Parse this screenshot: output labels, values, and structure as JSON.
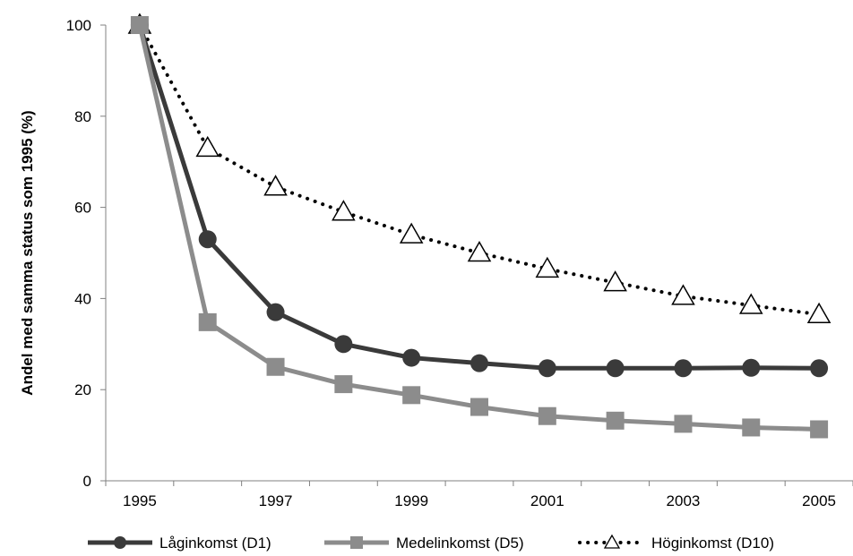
{
  "chart_data": {
    "type": "line",
    "title": "",
    "xlabel": "",
    "ylabel": "Andel med samma status som 1995 (%)",
    "x": [
      1995,
      1996,
      1997,
      1998,
      1999,
      2000,
      2001,
      2002,
      2003,
      2004,
      2005
    ],
    "x_tick_labels": [
      "1995",
      "1997",
      "1999",
      "2001",
      "2003",
      "2005"
    ],
    "y_tick_labels": [
      "0",
      "20",
      "40",
      "60",
      "80",
      "100"
    ],
    "ylim": [
      0,
      100
    ],
    "grid": false,
    "legend_position": "bottom",
    "series": [
      {
        "name": "Låginkomst (D1)",
        "color": "#3a3a3a",
        "marker": "circle",
        "line": "solid",
        "values": [
          100,
          53,
          37,
          30,
          27,
          25.8,
          24.7,
          24.7,
          24.7,
          24.8,
          24.7
        ]
      },
      {
        "name": "Medelinkomst (D5)",
        "color": "#8c8c8c",
        "marker": "square",
        "line": "solid",
        "values": [
          100,
          34.8,
          25,
          21.2,
          18.8,
          16.2,
          14.2,
          13.2,
          12.5,
          11.7,
          11.3
        ]
      },
      {
        "name": "Höginkomst (D10)",
        "color": "#000000",
        "marker": "triangle",
        "line": "dotted",
        "values": [
          100,
          73,
          64.5,
          59,
          54,
          50,
          46.5,
          43.5,
          40.5,
          38.5,
          36.5
        ]
      }
    ]
  }
}
